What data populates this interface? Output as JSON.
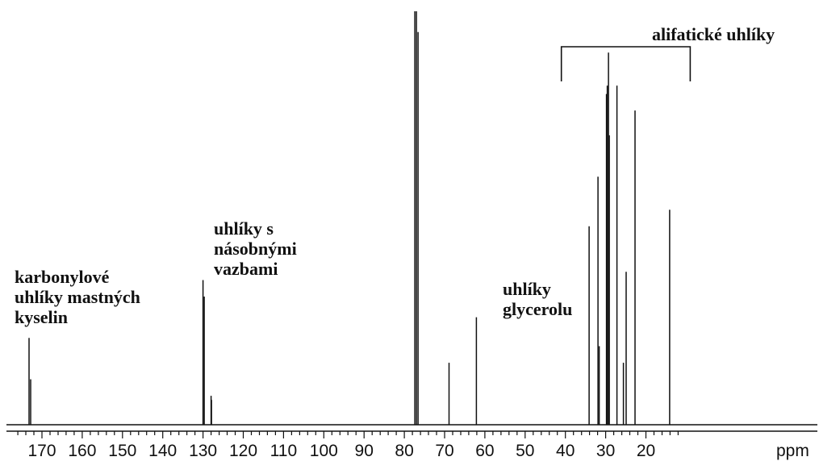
{
  "chart_data": {
    "type": "line",
    "title": "",
    "xlabel": "ppm",
    "ylabel": "",
    "xlim": [
      178,
      5
    ],
    "x_reversed": true,
    "x_ticks": [
      170,
      160,
      150,
      140,
      130,
      120,
      110,
      100,
      90,
      80,
      70,
      60,
      50,
      40,
      30,
      20
    ],
    "tick_labels": [
      "170",
      "160",
      "150",
      "140",
      "130",
      "120",
      "110",
      "100",
      "90",
      "80",
      "70",
      "60",
      "50",
      "40",
      "30",
      "20"
    ],
    "unit_label": "ppm",
    "grid": false,
    "line_color": "#111111",
    "peaks": [
      {
        "ppm": 173.2,
        "intensity": 0.21
      },
      {
        "ppm": 172.8,
        "intensity": 0.11
      },
      {
        "ppm": 130.0,
        "intensity": 0.35
      },
      {
        "ppm": 129.7,
        "intensity": 0.31
      },
      {
        "ppm": 128.0,
        "intensity": 0.07
      },
      {
        "ppm": 127.9,
        "intensity": 0.06
      },
      {
        "ppm": 77.4,
        "intensity": 1.0
      },
      {
        "ppm": 77.0,
        "intensity": 1.0
      },
      {
        "ppm": 76.6,
        "intensity": 0.95
      },
      {
        "ppm": 68.9,
        "intensity": 0.15
      },
      {
        "ppm": 62.1,
        "intensity": 0.26
      },
      {
        "ppm": 34.1,
        "intensity": 0.48
      },
      {
        "ppm": 31.9,
        "intensity": 0.6
      },
      {
        "ppm": 31.6,
        "intensity": 0.19
      },
      {
        "ppm": 29.8,
        "intensity": 0.8
      },
      {
        "ppm": 29.6,
        "intensity": 0.82
      },
      {
        "ppm": 29.3,
        "intensity": 0.9
      },
      {
        "ppm": 29.1,
        "intensity": 0.7
      },
      {
        "ppm": 27.2,
        "intensity": 0.82
      },
      {
        "ppm": 25.6,
        "intensity": 0.15
      },
      {
        "ppm": 24.9,
        "intensity": 0.37
      },
      {
        "ppm": 22.7,
        "intensity": 0.76
      },
      {
        "ppm": 14.1,
        "intensity": 0.52
      }
    ],
    "annotations": [
      {
        "id": "carbonyl",
        "lines": [
          "karbonylové",
          "uhlíky mastných",
          "kyselin"
        ]
      },
      {
        "id": "multiple-bond",
        "lines": [
          "uhlíky s",
          "násobnými",
          "vazbami"
        ]
      },
      {
        "id": "glycerol",
        "lines": [
          "uhlíky",
          "glycerolu"
        ]
      },
      {
        "id": "aliphatic",
        "lines": [
          "alifatické uhlíky"
        ],
        "bracket_ppm": [
          41,
          9
        ]
      }
    ]
  }
}
